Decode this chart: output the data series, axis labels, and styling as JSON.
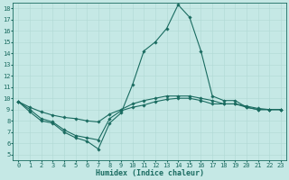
{
  "xlabel": "Humidex (Indice chaleur)",
  "background_color": "#c5e8e5",
  "line_color": "#1a6b60",
  "grid_color": "#b0d8d4",
  "xlim": [
    -0.5,
    23.5
  ],
  "ylim": [
    4.5,
    18.5
  ],
  "yticks": [
    5,
    6,
    7,
    8,
    9,
    10,
    11,
    12,
    13,
    14,
    15,
    16,
    17,
    18
  ],
  "xticks": [
    0,
    1,
    2,
    3,
    4,
    5,
    6,
    7,
    8,
    9,
    10,
    11,
    12,
    13,
    14,
    15,
    16,
    17,
    18,
    19,
    20,
    21,
    22,
    23
  ],
  "series": [
    {
      "x": [
        0,
        1,
        2,
        3,
        4,
        5,
        6,
        7,
        8,
        9,
        10,
        11,
        12,
        13,
        14,
        15,
        16,
        17,
        18,
        19,
        20,
        21,
        22,
        23
      ],
      "y": [
        9.7,
        8.8,
        8.0,
        7.8,
        7.0,
        6.5,
        6.2,
        5.5,
        7.8,
        8.7,
        11.2,
        14.2,
        15.0,
        16.2,
        18.3,
        17.2,
        14.2,
        10.2,
        9.8,
        9.8,
        9.2,
        9.0,
        9.0,
        9.0
      ]
    },
    {
      "x": [
        0,
        1,
        2,
        3,
        4,
        5,
        6,
        7,
        8,
        9,
        10,
        11,
        12,
        13,
        14,
        15,
        16,
        17,
        18,
        19,
        20,
        21,
        22,
        23
      ],
      "y": [
        9.7,
        9.2,
        8.8,
        8.5,
        8.3,
        8.2,
        8.0,
        7.9,
        8.6,
        9.0,
        9.5,
        9.8,
        10.0,
        10.2,
        10.2,
        10.2,
        10.0,
        9.8,
        9.5,
        9.5,
        9.3,
        9.1,
        9.0,
        9.0
      ]
    },
    {
      "x": [
        0,
        1,
        2,
        3,
        4,
        5,
        6,
        7,
        8,
        9,
        10,
        11,
        12,
        13,
        14,
        15,
        16,
        17,
        18,
        19,
        20,
        21,
        22,
        23
      ],
      "y": [
        9.7,
        9.0,
        8.2,
        7.9,
        7.2,
        6.7,
        6.5,
        6.3,
        8.2,
        8.9,
        9.2,
        9.4,
        9.7,
        9.9,
        10.0,
        10.0,
        9.8,
        9.5,
        9.5,
        9.5,
        9.2,
        9.0,
        9.0,
        9.0
      ]
    }
  ],
  "marker": "D",
  "markersize": 1.8,
  "linewidth": 0.8,
  "xlabel_fontsize": 6,
  "tick_fontsize": 5
}
